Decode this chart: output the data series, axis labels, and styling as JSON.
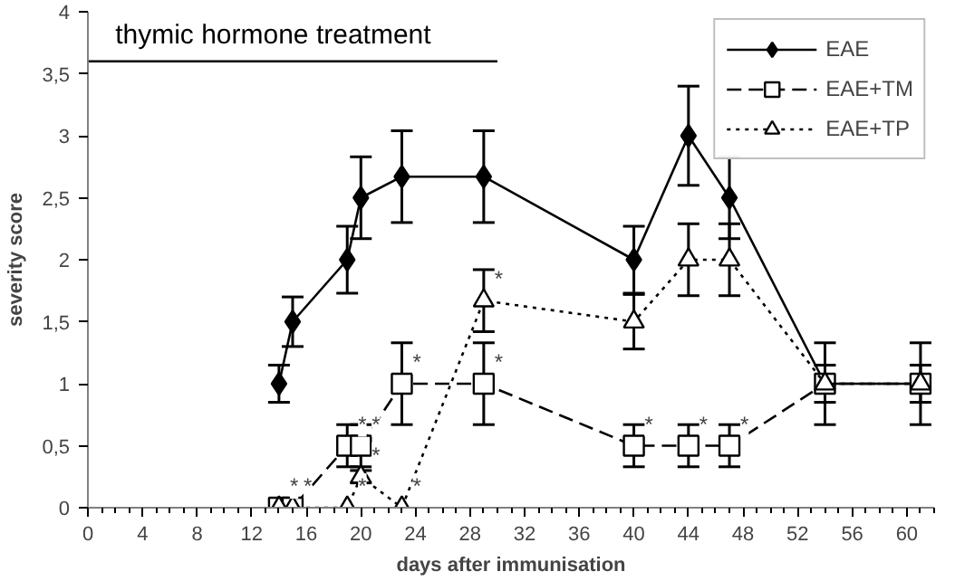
{
  "chart_data": {
    "type": "line",
    "xlabel": "days after immunisation",
    "ylabel": "severity score",
    "xlim": [
      0,
      62
    ],
    "ylim": [
      0,
      4
    ],
    "xticks": [
      0,
      4,
      8,
      12,
      16,
      20,
      24,
      28,
      32,
      36,
      40,
      44,
      48,
      52,
      56,
      60
    ],
    "yticks": [
      0,
      {
        "value": 0.5,
        "label": "0,5"
      },
      1,
      {
        "value": 1.5,
        "label": "1,5"
      },
      2,
      {
        "value": 2.5,
        "label": "2,5"
      },
      3,
      {
        "value": 3.5,
        "label": "3,5"
      },
      4
    ],
    "grid": false,
    "legend": "top right",
    "x": [
      14,
      15,
      19,
      20,
      23,
      29,
      40,
      44,
      47,
      54,
      61
    ],
    "series": [
      {
        "name": "EAE",
        "color": "#000000",
        "marker": "diamond",
        "line_style": "solid",
        "values": [
          1,
          1.5,
          2,
          2.5,
          2.67,
          2.67,
          2,
          3,
          2.5,
          1,
          1
        ],
        "errors": [
          0.15,
          0.2,
          0.27,
          0.33,
          0.37,
          0.37,
          0.27,
          0.4,
          0.33,
          0.15,
          0.15
        ]
      },
      {
        "name": "EAE+TM",
        "color": "#000000",
        "marker": "square",
        "line_style": "dashed",
        "values": [
          0,
          0,
          0.5,
          0.5,
          1,
          1,
          0.5,
          0.5,
          0.5,
          1,
          1
        ],
        "errors": [
          null,
          null,
          0.17,
          0.17,
          0.33,
          0.33,
          0.17,
          0.17,
          0.17,
          0.33,
          0.33
        ]
      },
      {
        "name": "EAE+TP",
        "color": "#000000",
        "marker": "triangle",
        "line_style": "dotted",
        "values": [
          0,
          0,
          0,
          0.25,
          0,
          1.67,
          1.5,
          2,
          2,
          1,
          1
        ],
        "errors": [
          null,
          null,
          null,
          0.05,
          null,
          0.25,
          0.22,
          0.29,
          0.29,
          null,
          null
        ]
      },
      {
        "type": "line",
        "color": "#000000",
        "marker": "none",
        "line_style": "solid",
        "x": [
          0,
          30
        ],
        "values": [
          3.6,
          3.6
        ]
      }
    ],
    "annotations": [
      {
        "text": "thymic hormone treatment",
        "x": 2,
        "y": 3.6
      },
      {
        "text": "*",
        "x": 14,
        "y": 0
      },
      {
        "text": "*",
        "x": 15,
        "y": 0
      },
      {
        "text": "*",
        "x": 19,
        "y": 0.5
      },
      {
        "text": "*",
        "x": 20,
        "y": 0.5
      },
      {
        "text": "*",
        "x": 19,
        "y": 0
      },
      {
        "text": "*",
        "x": 20,
        "y": 0.25
      },
      {
        "text": "*",
        "x": 23,
        "y": 0
      },
      {
        "text": "*",
        "x": 23,
        "y": 1
      },
      {
        "text": "*",
        "x": 29,
        "y": 1.67
      },
      {
        "text": "*",
        "x": 29,
        "y": 1
      },
      {
        "text": "*",
        "x": 40,
        "y": 0.5
      },
      {
        "text": "*",
        "x": 44,
        "y": 0.5
      },
      {
        "text": "*",
        "x": 47,
        "y": 0.5
      }
    ]
  }
}
